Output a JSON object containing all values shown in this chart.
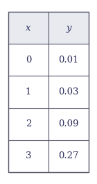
{
  "headers": [
    "x",
    "y"
  ],
  "rows": [
    [
      "0",
      "0.01"
    ],
    [
      "1",
      "0.03"
    ],
    [
      "2",
      "0.09"
    ],
    [
      "3",
      "0.27"
    ]
  ],
  "header_bg": "#e8eaf0",
  "row_bg": "#ffffff",
  "border_color": "#555566",
  "text_color": "#2a2a5a",
  "header_fontsize": 9.5,
  "row_fontsize": 9.5,
  "fig_bg": "#ffffff",
  "outer_bg": "#ffffff"
}
